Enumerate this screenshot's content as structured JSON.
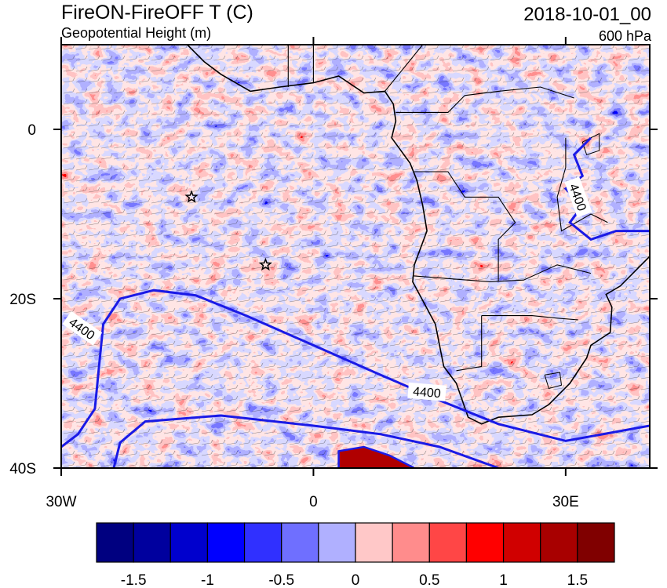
{
  "map": {
    "title": "FireON-FireOFF T (C)",
    "subtitle": "Geopotential Height (m)",
    "date": "2018-10-01_00",
    "level": "600 hPa",
    "xlim": [
      -30,
      40
    ],
    "ylim": [
      -40,
      10
    ],
    "xticks": [
      {
        "value": -30,
        "label": "30W"
      },
      0,
      {
        "value": 30,
        "label": "30E"
      }
    ],
    "yticks": [
      0,
      {
        "value": -20,
        "label": "20S"
      },
      {
        "value": -40,
        "label": "40S"
      }
    ],
    "contour_labels": [
      "4400",
      "4400",
      "4400"
    ],
    "colorbar": {
      "lim": [
        -1.75,
        1.75
      ],
      "ticks": [
        -1.5,
        -1,
        -0.5,
        0,
        0.5,
        1,
        1.5
      ],
      "colors": [
        "#000080",
        "#00009e",
        "#0000cd",
        "#0000ff",
        "#3030ff",
        "#6f6fff",
        "#b0b0ff",
        "#ffc8c8",
        "#ff8c8c",
        "#ff4646",
        "#ff0000",
        "#d00000",
        "#a80000",
        "#800000"
      ]
    }
  }
}
